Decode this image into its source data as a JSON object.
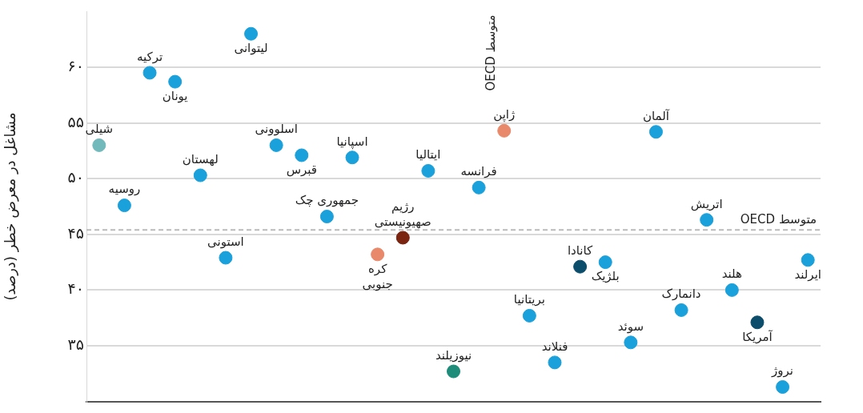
{
  "chart_data": {
    "type": "scatter",
    "ylabel": "مشاغل در معرض خطر (درصد)",
    "categories": [
      null,
      null,
      null,
      null,
      null,
      null,
      null,
      null,
      null,
      null,
      null,
      null,
      null,
      null,
      null,
      null,
      null,
      null,
      null,
      null,
      null,
      null,
      null,
      null,
      null,
      null,
      null,
      null,
      null
    ],
    "values": [
      53.0,
      47.6,
      59.5,
      58.7,
      50.3,
      42.9,
      63.0,
      53.0,
      52.1,
      46.6,
      51.9,
      43.2,
      44.7,
      50.7,
      32.7,
      49.2,
      54.3,
      37.7,
      33.5,
      42.1,
      42.5,
      35.3,
      54.2,
      38.2,
      46.3,
      40.0,
      37.1,
      31.3,
      42.7
    ],
    "colors": [
      "#72b9bb",
      "#1aa1dc",
      "#1aa1dc",
      "#1aa1dc",
      "#1aa1dc",
      "#1aa1dc",
      "#1aa1dc",
      "#1aa1dc",
      "#1aa1dc",
      "#1aa1dc",
      "#1aa1dc",
      "#e9896b",
      "#7b2410",
      "#1aa1dc",
      "#1f8c7a",
      "#1aa1dc",
      "#e9896b",
      "#1aa1dc",
      "#1aa1dc",
      "#0b4d6b",
      "#1aa1dc",
      "#1aa1dc",
      "#1aa1dc",
      "#1aa1dc",
      "#1aa1dc",
      "#1aa1dc",
      "#0b4d6b",
      "#1aa1dc",
      "#1aa1dc"
    ],
    "annotations": [
      {
        "text": "شیلی",
        "y": 53.0
      },
      {
        "text": "روسیه",
        "y": 47.6
      },
      {
        "text": "ترکیه",
        "y": 59.5
      },
      {
        "text": "یونان",
        "y": 58.7
      },
      {
        "text": "لهستان",
        "y": 50.3
      },
      {
        "text": "استونی",
        "y": 42.9
      },
      {
        "text": "لیتوانی",
        "y": 63.0
      },
      {
        "text": "اسلوونی",
        "y": 53.0
      },
      {
        "text": "قبرس",
        "y": 52.1
      },
      {
        "text": "جمهوری چک",
        "y": 46.6
      },
      {
        "text": "اسپانیا",
        "y": 51.9
      },
      {
        "text": "کره جنوبی",
        "y": 43.2
      },
      {
        "text": "رژیم صهیونیستی",
        "y": 44.7
      },
      {
        "text": "ایتالیا",
        "y": 50.7
      },
      {
        "text": "نیوزیلند",
        "y": 32.7
      },
      {
        "text": "فرانسه",
        "y": 49.2
      },
      {
        "text": "ژاپن",
        "y": 54.3
      },
      {
        "text": "بریتانیا",
        "y": 37.7
      },
      {
        "text": "فنلاند",
        "y": 33.5
      },
      {
        "text": "کانادا",
        "y": 42.1
      },
      {
        "text": "بلژیک",
        "y": 42.5
      },
      {
        "text": "سوئد",
        "y": 35.3
      },
      {
        "text": "آلمان",
        "y": 54.2
      },
      {
        "text": "دانمارک",
        "y": 38.2
      },
      {
        "text": "اتریش",
        "y": 46.3
      },
      {
        "text": "هلند",
        "y": 40.0
      },
      {
        "text": "آمریکا",
        "y": 37.1
      },
      {
        "text": "نروژ",
        "y": 31.3
      },
      {
        "text": "ایرلند",
        "y": 42.7
      },
      "متوسط OECD"
    ],
    "ref_lines": [
      {
        "axis": "y",
        "value": 45.4,
        "label": "متوسط OECD",
        "color": "#bbbbbb",
        "line_style": "dashed"
      }
    ],
    "ylim": [
      30,
      65
    ],
    "yticks": [
      {
        "value": 35,
        "label": "۳۵"
      },
      {
        "value": 40,
        "label": "۴۰"
      },
      {
        "value": 45,
        "label": "۴۵"
      },
      {
        "value": 50,
        "label": "۵۰"
      },
      {
        "value": 55,
        "label": "۵۵"
      },
      {
        "value": 60,
        "label": "۶۰"
      }
    ],
    "grid": "y",
    "marker": "circle",
    "tick_labels": "y"
  }
}
